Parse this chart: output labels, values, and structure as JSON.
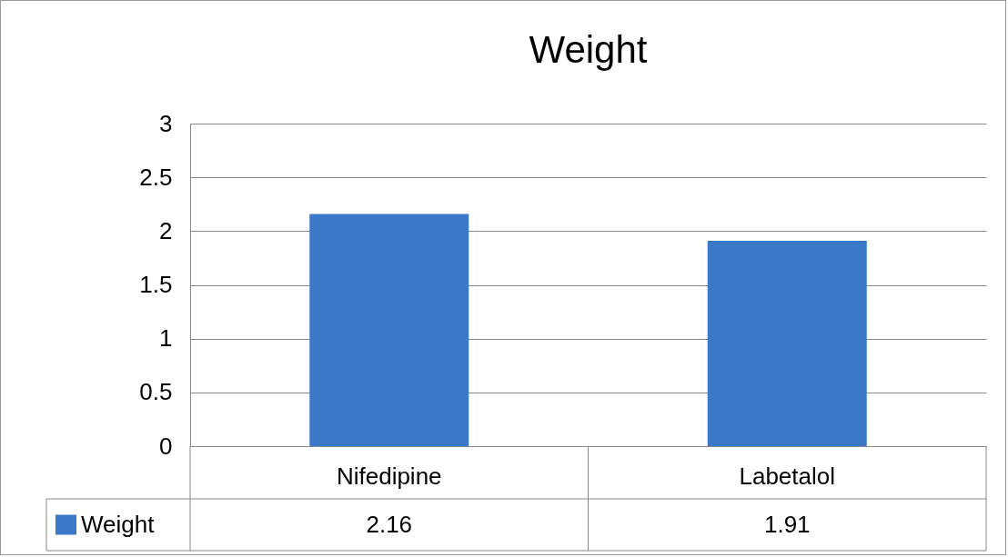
{
  "chart_data": {
    "type": "bar",
    "title": "Weight",
    "categories": [
      "Nifedipine",
      "Labetalol"
    ],
    "series": [
      {
        "name": "Weight",
        "color": "#3a78c8",
        "values": [
          2.16,
          1.91
        ]
      }
    ],
    "ylim": [
      0,
      3
    ],
    "yticks": [
      0,
      0.5,
      1,
      1.5,
      2,
      2.5,
      3
    ],
    "grid": "y",
    "legend": "bottom",
    "data_labels": true
  }
}
